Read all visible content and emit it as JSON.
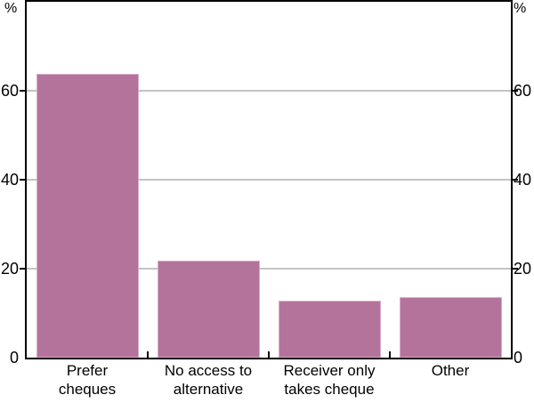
{
  "chart_data": {
    "type": "bar",
    "title": "",
    "categories": [
      {
        "lines": [
          "Prefer",
          "cheques"
        ]
      },
      {
        "lines": [
          "No access to",
          "alternative"
        ]
      },
      {
        "lines": [
          "Receiver only",
          "takes cheque"
        ]
      },
      {
        "lines": [
          "Other"
        ]
      }
    ],
    "values": [
      63.8,
      21.9,
      12.9,
      13.7
    ],
    "unit_left": "%",
    "unit_right": "%",
    "ylabel": "%",
    "xlabel": "",
    "ylim": [
      0,
      80
    ],
    "yticks": [
      0,
      20,
      40,
      60
    ],
    "grid": true,
    "legend": false,
    "colors": {
      "bar_fill": "#b4739b",
      "bar_border": "#d8abc9",
      "gridline": "#c4c4c4",
      "axis": "#000000",
      "text": "#000000",
      "background": "#ffffff"
    }
  }
}
